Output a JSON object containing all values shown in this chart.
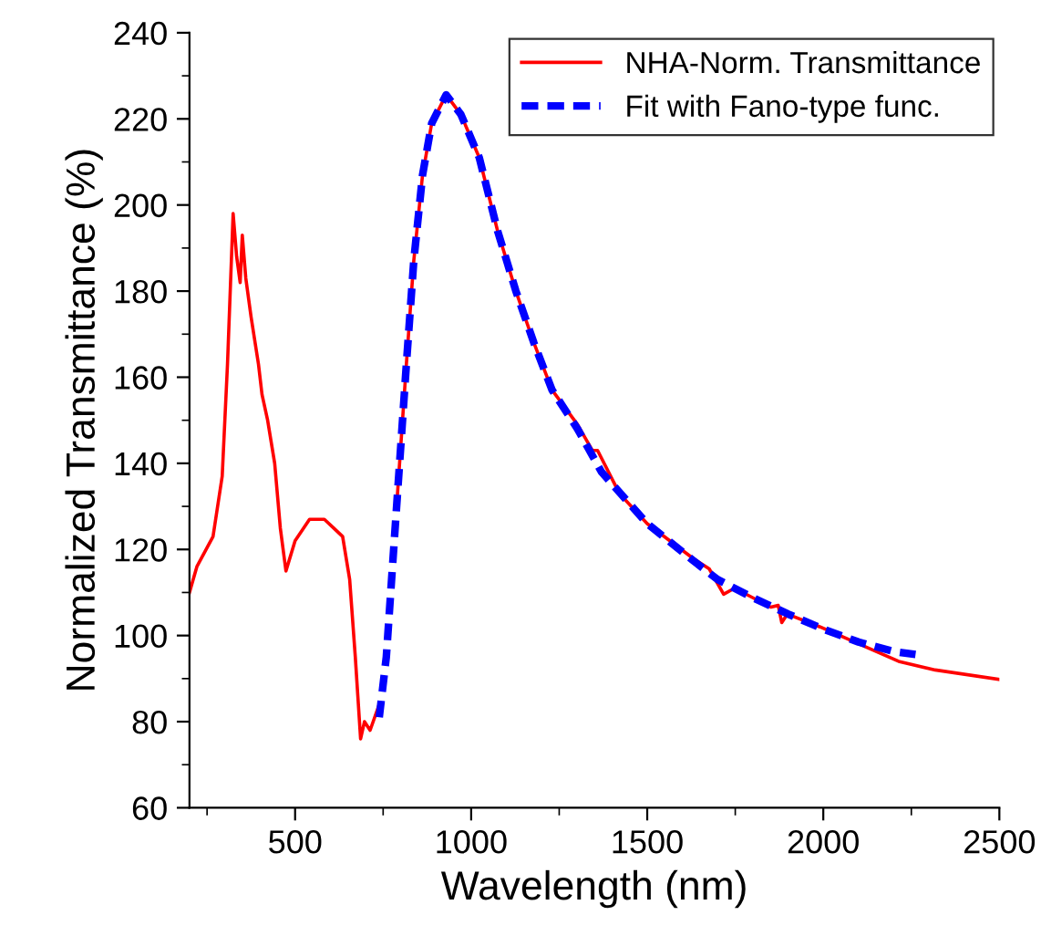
{
  "chart_data": {
    "type": "line",
    "xlabel": "Wavelength (nm)",
    "ylabel": "Normalized Transmittance (%)",
    "xlim": [
      200,
      2500
    ],
    "ylim": [
      60,
      240
    ],
    "xticks": [
      {
        "value": 250,
        "label": null
      },
      500,
      {
        "value": 750,
        "label": null
      },
      1000,
      {
        "value": 1250,
        "label": null
      },
      1500,
      {
        "value": 1750,
        "label": null
      },
      2000,
      {
        "value": 2250,
        "label": null
      },
      2500
    ],
    "yticks": [
      60,
      {
        "value": 70,
        "label": null
      },
      80,
      {
        "value": 90,
        "label": null
      },
      100,
      {
        "value": 110,
        "label": null
      },
      120,
      {
        "value": 130,
        "label": null
      },
      140,
      {
        "value": 150,
        "label": null
      },
      160,
      {
        "value": 170,
        "label": null
      },
      180,
      {
        "value": 190,
        "label": null
      },
      200,
      {
        "value": 210,
        "label": null
      },
      220,
      {
        "value": 230,
        "label": null
      },
      240
    ],
    "grid": false,
    "legend": "top right",
    "series": [
      {
        "name": "NHA-Norm. Transmittance",
        "color": "#ff0000",
        "line_style": "solid",
        "x": [
          200,
          221,
          267,
          293,
          308,
          324,
          334,
          344,
          350,
          360,
          375,
          396,
          406,
          422,
          442,
          458,
          474,
          500,
          541,
          583,
          609,
          635,
          655,
          671,
          686,
          697,
          713,
          739,
          759,
          774,
          790,
          816,
          837,
          862,
          888,
          929,
          971,
          1023,
          1075,
          1127,
          1178,
          1230,
          1302,
          1344,
          1359,
          1421,
          1500,
          1629,
          1676,
          1717,
          1748,
          1851,
          1872,
          1882,
          1898,
          1991,
          2131,
          2214,
          2318,
          2500
        ],
        "values": [
          110,
          116,
          123,
          137,
          163,
          198,
          188,
          182,
          193,
          183,
          174,
          163,
          156,
          150,
          140,
          125,
          115,
          122,
          127,
          127,
          125,
          123,
          113,
          95,
          76,
          80,
          78,
          84,
          null,
          null,
          132,
          163,
          187,
          207,
          219,
          225.6,
          221,
          211,
          194,
          180,
          168,
          157,
          149,
          143,
          143,
          133,
          126,
          118,
          115.5,
          109.6,
          111,
          106.6,
          107,
          103,
          105,
          102,
          97,
          94,
          92,
          89.8
        ]
      },
      {
        "name": "Fit with Fano-type func.",
        "color": "#0000ff",
        "line_style": "dashed",
        "x": [
          739,
          759,
          774,
          790,
          816,
          837,
          862,
          888,
          929,
          971,
          1023,
          1075,
          1127,
          1178,
          1230,
          1302,
          1370,
          1500,
          1629,
          1700,
          1800,
          1900,
          2000,
          2100,
          2200,
          2262
        ],
        "values": [
          81,
          95,
          113,
          132,
          163,
          187,
          207,
          219,
          225.6,
          221,
          211,
          194,
          180,
          168,
          157,
          148,
          138,
          126,
          117.5,
          113,
          108.8,
          105,
          101.5,
          98.5,
          96.3,
          95.6
        ]
      }
    ]
  }
}
